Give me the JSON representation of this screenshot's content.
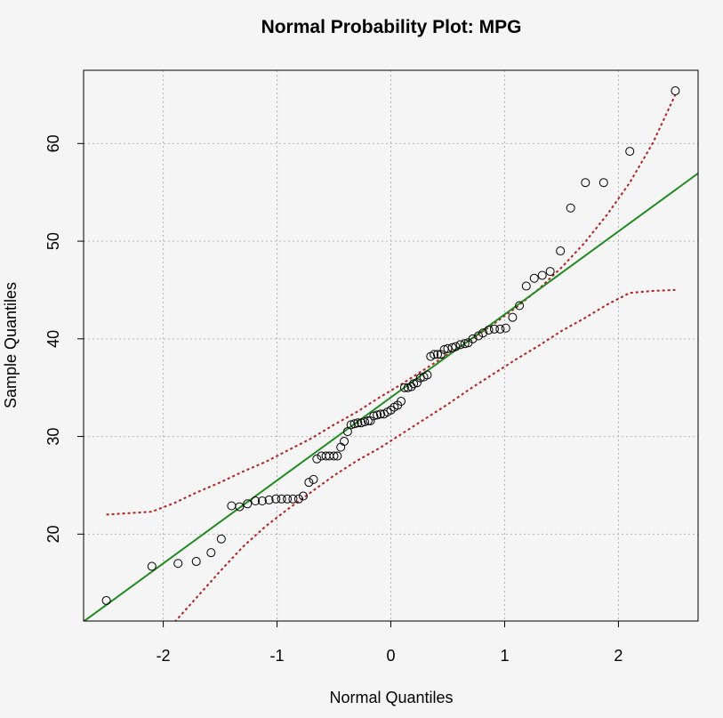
{
  "chart_data": {
    "type": "scatter",
    "title": "Normal Probability Plot: MPG",
    "xlabel": "Normal Quantiles",
    "ylabel": "Sample Quantiles",
    "xlim": [
      -2.7,
      2.7
    ],
    "ylim": [
      11.1,
      67.5
    ],
    "xticks": [
      -2,
      -1,
      0,
      1,
      2
    ],
    "xtick_labels": [
      "-2",
      "-1",
      "0",
      "1",
      "2"
    ],
    "yticks": [
      20,
      30,
      40,
      50,
      60
    ],
    "ytick_labels": [
      "20",
      "30",
      "40",
      "50",
      "60"
    ],
    "grid": true,
    "colors": {
      "points": "#000000",
      "ref_line": "#228b22",
      "band": "#b22222",
      "grid": "#b4b4b4",
      "background": "#f5f5f5"
    },
    "reference_line": {
      "intercept": 34.0,
      "slope": 8.5
    },
    "confidence_band": {
      "x": [
        -2.5,
        -2.1,
        -1.9,
        -1.7,
        -1.5,
        -1.3,
        -1.1,
        -0.9,
        -0.7,
        -0.5,
        -0.3,
        -0.1,
        0.1,
        0.3,
        0.5,
        0.7,
        0.9,
        1.1,
        1.3,
        1.5,
        1.7,
        1.9,
        2.1,
        2.3,
        2.5
      ],
      "upper": [
        22.0,
        22.3,
        23.2,
        24.3,
        25.3,
        26.4,
        27.4,
        28.6,
        29.8,
        31.2,
        32.5,
        34.0,
        35.4,
        36.9,
        38.4,
        39.9,
        41.5,
        43.2,
        45.1,
        47.3,
        49.8,
        52.7,
        56.0,
        60.0,
        65.0
      ],
      "lower": [
        null,
        null,
        11.0,
        13.6,
        16.2,
        18.7,
        20.8,
        22.6,
        24.3,
        26.0,
        27.5,
        28.8,
        30.3,
        31.8,
        33.3,
        34.9,
        36.4,
        37.9,
        39.3,
        40.8,
        42.1,
        43.5,
        44.7,
        44.9,
        45.0
      ]
    },
    "series": [
      {
        "name": "MPG",
        "x": [
          -2.5,
          -2.1,
          -1.87,
          -1.71,
          -1.58,
          -1.49,
          -1.4,
          -1.33,
          -1.26,
          -1.19,
          -1.13,
          -1.07,
          -1.01,
          -0.96,
          -0.91,
          -0.86,
          -0.81,
          -0.77,
          -0.72,
          -0.68,
          -0.65,
          -0.61,
          -0.57,
          -0.54,
          -0.5,
          -0.47,
          -0.44,
          -0.41,
          -0.38,
          -0.35,
          -0.32,
          -0.29,
          -0.26,
          -0.23,
          -0.2,
          -0.18,
          -0.15,
          -0.12,
          -0.09,
          -0.06,
          -0.03,
          0.0,
          0.03,
          0.06,
          0.09,
          0.12,
          0.15,
          0.18,
          0.2,
          0.23,
          0.26,
          0.29,
          0.32,
          0.35,
          0.38,
          0.41,
          0.44,
          0.47,
          0.5,
          0.54,
          0.57,
          0.61,
          0.65,
          0.68,
          0.72,
          0.77,
          0.81,
          0.86,
          0.91,
          0.96,
          1.01,
          1.07,
          1.13,
          1.19,
          1.26,
          1.33,
          1.4,
          1.49,
          1.58,
          1.71,
          1.87,
          2.1,
          2.5
        ],
        "y": [
          13.2,
          16.7,
          17.0,
          17.2,
          18.1,
          19.5,
          22.9,
          22.8,
          23.1,
          23.4,
          23.4,
          23.5,
          23.6,
          23.6,
          23.6,
          23.6,
          23.6,
          23.9,
          25.3,
          25.6,
          27.7,
          28.0,
          28.0,
          28.0,
          28.0,
          28.0,
          28.9,
          29.5,
          30.5,
          31.2,
          31.3,
          31.4,
          31.4,
          31.5,
          31.6,
          31.6,
          32.1,
          32.2,
          32.3,
          32.3,
          32.5,
          32.7,
          33.0,
          33.2,
          33.6,
          35.0,
          35.0,
          35.1,
          35.4,
          35.5,
          36.0,
          36.1,
          36.3,
          38.2,
          38.4,
          38.4,
          38.4,
          38.9,
          39.0,
          39.1,
          39.2,
          39.4,
          39.5,
          39.6,
          40.0,
          40.3,
          40.6,
          40.9,
          41.0,
          41.0,
          41.1,
          42.2,
          43.4,
          45.4,
          46.2,
          46.5,
          46.9,
          49.0,
          53.4,
          56.0,
          56.0,
          59.2,
          65.4
        ]
      }
    ]
  }
}
